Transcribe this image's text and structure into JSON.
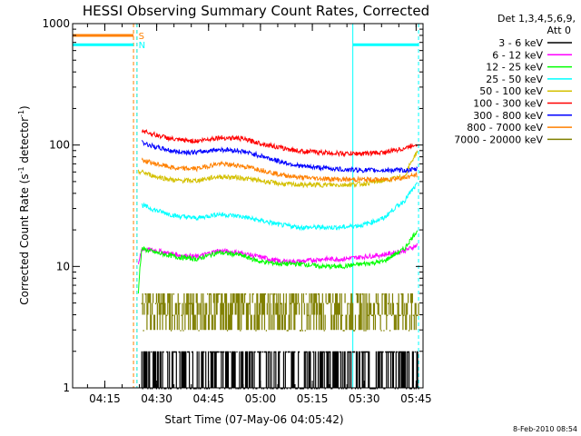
{
  "chart_data": {
    "type": "line",
    "title": "HESSI Observing Summary Count Rates, Corrected",
    "xlabel": "Start Time (07-May-06 04:05:42)",
    "ylabel_parts": {
      "main": "Corrected Count Rate (s",
      "sup1": "-1",
      "mid": " detector",
      "sup2": "-1",
      "end": ")"
    },
    "y_scale": "log",
    "ylim": [
      1,
      1000
    ],
    "y_ticks": [
      {
        "value": 1,
        "label": "1"
      },
      {
        "value": 10,
        "label": "10"
      },
      {
        "value": 100,
        "label": "100"
      },
      {
        "value": 1000,
        "label": "1000"
      }
    ],
    "x_unit": "minutes since 04:05:42",
    "xlim": [
      0,
      101.3
    ],
    "x_ticks": [
      {
        "value": 9.3,
        "label": "04:15"
      },
      {
        "value": 24.3,
        "label": "04:30"
      },
      {
        "value": 39.3,
        "label": "04:45"
      },
      {
        "value": 54.3,
        "label": "05:00"
      },
      {
        "value": 69.3,
        "label": "05:15"
      },
      {
        "value": 84.3,
        "label": "05:30"
      },
      {
        "value": 99.3,
        "label": "05:45"
      }
    ],
    "legend_header": [
      "Det 1,3,4,5,6,9,",
      "Att 0"
    ],
    "legend_position": "right",
    "series": [
      {
        "name": "3 - 6 keV",
        "color": "#000000"
      },
      {
        "name": "6 - 12 keV",
        "color": "#ff00ff"
      },
      {
        "name": "12 - 25 keV",
        "color": "#00ff00"
      },
      {
        "name": "25 - 50 keV",
        "color": "#00ffff"
      },
      {
        "name": "50 - 100 keV",
        "color": "#d4c000"
      },
      {
        "name": "100 - 300 keV",
        "color": "#ff0000"
      },
      {
        "name": "300 - 800 keV",
        "color": "#0000ff"
      },
      {
        "name": "800 - 7000 keV",
        "color": "#ff8000"
      },
      {
        "name": "7000 - 20000 keV",
        "color": "#808000"
      }
    ],
    "series_points": {
      "6 - 12 keV": [
        [
          19,
          10
        ],
        [
          20,
          14
        ],
        [
          24,
          13.5
        ],
        [
          30,
          12.5
        ],
        [
          36,
          12
        ],
        [
          42,
          13.5
        ],
        [
          48,
          13
        ],
        [
          54,
          12
        ],
        [
          60,
          11
        ],
        [
          66,
          11
        ],
        [
          72,
          11.5
        ],
        [
          78,
          11.5
        ],
        [
          84,
          12
        ],
        [
          90,
          12.5
        ],
        [
          96,
          13.5
        ],
        [
          99.8,
          15
        ]
      ],
      "12 - 25 keV": [
        [
          19,
          6
        ],
        [
          20,
          14
        ],
        [
          24,
          13
        ],
        [
          30,
          12
        ],
        [
          36,
          11.5
        ],
        [
          42,
          13
        ],
        [
          48,
          12.5
        ],
        [
          54,
          11
        ],
        [
          60,
          10.5
        ],
        [
          66,
          10.5
        ],
        [
          72,
          10
        ],
        [
          78,
          10
        ],
        [
          84,
          10.5
        ],
        [
          90,
          11
        ],
        [
          96,
          14
        ],
        [
          99.8,
          20
        ]
      ],
      "25 - 50 keV": [
        [
          20,
          32
        ],
        [
          24,
          29
        ],
        [
          30,
          26
        ],
        [
          36,
          25
        ],
        [
          42,
          27
        ],
        [
          48,
          26
        ],
        [
          54,
          24
        ],
        [
          60,
          22
        ],
        [
          66,
          21
        ],
        [
          72,
          21
        ],
        [
          78,
          21
        ],
        [
          84,
          22
        ],
        [
          90,
          25
        ],
        [
          96,
          35
        ],
        [
          99.8,
          48
        ]
      ],
      "50 - 100 keV": [
        [
          19,
          60
        ],
        [
          20,
          60
        ],
        [
          24,
          55
        ],
        [
          30,
          51
        ],
        [
          36,
          51
        ],
        [
          42,
          55
        ],
        [
          48,
          54
        ],
        [
          54,
          51
        ],
        [
          60,
          48
        ],
        [
          66,
          47
        ],
        [
          72,
          47
        ],
        [
          78,
          47
        ],
        [
          84,
          48
        ],
        [
          90,
          51
        ],
        [
          96,
          55
        ],
        [
          99.8,
          90
        ]
      ],
      "800 - 7000 keV": [
        [
          20,
          75
        ],
        [
          24,
          70
        ],
        [
          30,
          64
        ],
        [
          36,
          64
        ],
        [
          42,
          70
        ],
        [
          48,
          68
        ],
        [
          54,
          63
        ],
        [
          60,
          57
        ],
        [
          66,
          54
        ],
        [
          72,
          53
        ],
        [
          78,
          52
        ],
        [
          84,
          52
        ],
        [
          90,
          52
        ],
        [
          96,
          54
        ],
        [
          99.8,
          57
        ]
      ],
      "300 - 800 keV": [
        [
          20,
          105
        ],
        [
          24,
          96
        ],
        [
          30,
          88
        ],
        [
          36,
          87
        ],
        [
          42,
          92
        ],
        [
          48,
          90
        ],
        [
          54,
          82
        ],
        [
          60,
          73
        ],
        [
          66,
          67
        ],
        [
          72,
          65
        ],
        [
          78,
          63
        ],
        [
          84,
          62
        ],
        [
          90,
          62
        ],
        [
          96,
          62
        ],
        [
          99.8,
          63
        ]
      ],
      "100 - 300 keV": [
        [
          20,
          132
        ],
        [
          24,
          121
        ],
        [
          30,
          110
        ],
        [
          36,
          108
        ],
        [
          42,
          115
        ],
        [
          48,
          114
        ],
        [
          54,
          104
        ],
        [
          60,
          95
        ],
        [
          66,
          89
        ],
        [
          72,
          87
        ],
        [
          78,
          85
        ],
        [
          84,
          85
        ],
        [
          90,
          87
        ],
        [
          96,
          94
        ],
        [
          99.8,
          103
        ]
      ]
    },
    "band_series": {
      "3 - 6 keV": {
        "levels": [
          1,
          2
        ],
        "x_range": [
          20,
          100
        ]
      },
      "7000 - 20000 keV": {
        "levels": [
          3,
          4,
          5,
          6
        ],
        "x_range": [
          20,
          100
        ]
      }
    },
    "attenuator_markers": [
      {
        "label": "S",
        "color": "#ff8000",
        "x": 18,
        "y": 800
      },
      {
        "label": "N",
        "color": "#00ffff",
        "x": 18,
        "y": 670
      }
    ],
    "attenuator_lines": [
      {
        "color": "#ff8000",
        "segments": [
          [
            [
              0,
              800
            ],
            [
              17.6,
              800
            ]
          ]
        ],
        "vertical_dashed_x": [
          17.6,
          18.6
        ]
      },
      {
        "color": "#00ffff",
        "segments": [
          [
            [
              0,
              670
            ],
            [
              17.6,
              670
            ]
          ],
          [
            [
              81,
              670
            ],
            [
              100,
              670
            ]
          ]
        ],
        "vertical_solid_x": [
          0,
          81
        ],
        "vertical_dashed_x": [
          18.6,
          100
        ]
      }
    ],
    "grid": false
  },
  "timestamp": "8-Feb-2010 08:54"
}
